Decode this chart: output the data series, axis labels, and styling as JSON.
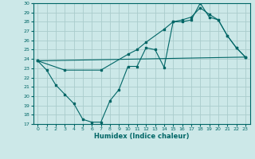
{
  "xlabel": "Humidex (Indice chaleur)",
  "xlim": [
    -0.5,
    23.5
  ],
  "ylim": [
    17,
    30
  ],
  "xticks": [
    0,
    1,
    2,
    3,
    4,
    5,
    6,
    7,
    8,
    9,
    10,
    11,
    12,
    13,
    14,
    15,
    16,
    17,
    18,
    19,
    20,
    21,
    22,
    23
  ],
  "yticks": [
    17,
    18,
    19,
    20,
    21,
    22,
    23,
    24,
    25,
    26,
    27,
    28,
    29,
    30
  ],
  "background_color": "#cce8e8",
  "grid_color": "#aacccc",
  "line_color": "#006666",
  "line1_x": [
    0,
    1,
    2,
    3,
    4,
    5,
    6,
    7,
    8,
    9,
    10,
    11,
    12,
    13,
    14,
    15,
    16,
    17,
    18,
    19,
    20,
    21,
    22,
    23
  ],
  "line1_y": [
    23.8,
    22.8,
    21.2,
    20.2,
    19.2,
    17.5,
    17.2,
    17.2,
    19.5,
    20.7,
    23.2,
    23.2,
    25.2,
    25.0,
    23.1,
    28.0,
    28.0,
    28.2,
    30.0,
    28.5,
    28.2,
    26.5,
    25.2,
    24.2
  ],
  "line2_x": [
    0,
    3,
    7,
    10,
    11,
    12,
    14,
    15,
    16,
    17,
    18,
    19,
    20,
    21,
    22,
    23
  ],
  "line2_y": [
    23.8,
    22.8,
    22.8,
    24.5,
    25.0,
    25.8,
    27.2,
    28.0,
    28.2,
    28.5,
    29.5,
    28.8,
    28.2,
    26.5,
    25.2,
    24.2
  ],
  "line3_x": [
    0,
    23
  ],
  "line3_y": [
    23.8,
    24.2
  ]
}
